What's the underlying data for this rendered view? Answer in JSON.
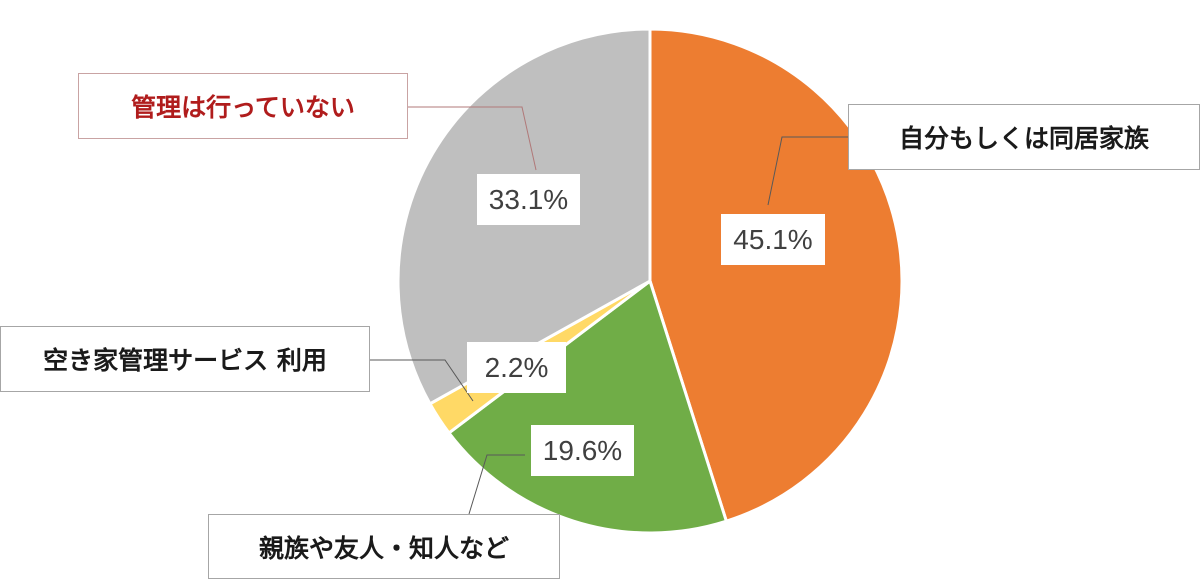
{
  "chart_data": {
    "type": "pie",
    "title": "",
    "categories": [
      "自分もしくは同居家族",
      "親族や友人・知人など",
      "空き家管理サービス 利用",
      "管理は行っていない"
    ],
    "values": [
      45.1,
      19.6,
      2.2,
      33.1
    ],
    "value_labels": [
      "45.1%",
      "19.6%",
      "2.2%",
      "33.1%"
    ],
    "colors": [
      "#ed7d31",
      "#70ad47",
      "#ffd966",
      "#bfbfbf"
    ],
    "start_angle": "12 o'clock",
    "direction": "clockwise",
    "legend": "none (callout labels)",
    "highlighted_category": "管理は行っていない",
    "highlight_color": "#b01c1c"
  },
  "labels": {
    "self": "自分もしくは同居家族",
    "relatives": "親族や友人・知人など",
    "service": "空き家管理サービス 利用",
    "none": "管理は行っていない"
  },
  "pct": {
    "self": "45.1%",
    "relatives": "19.6%",
    "service": "2.2%",
    "none": "33.1%"
  }
}
